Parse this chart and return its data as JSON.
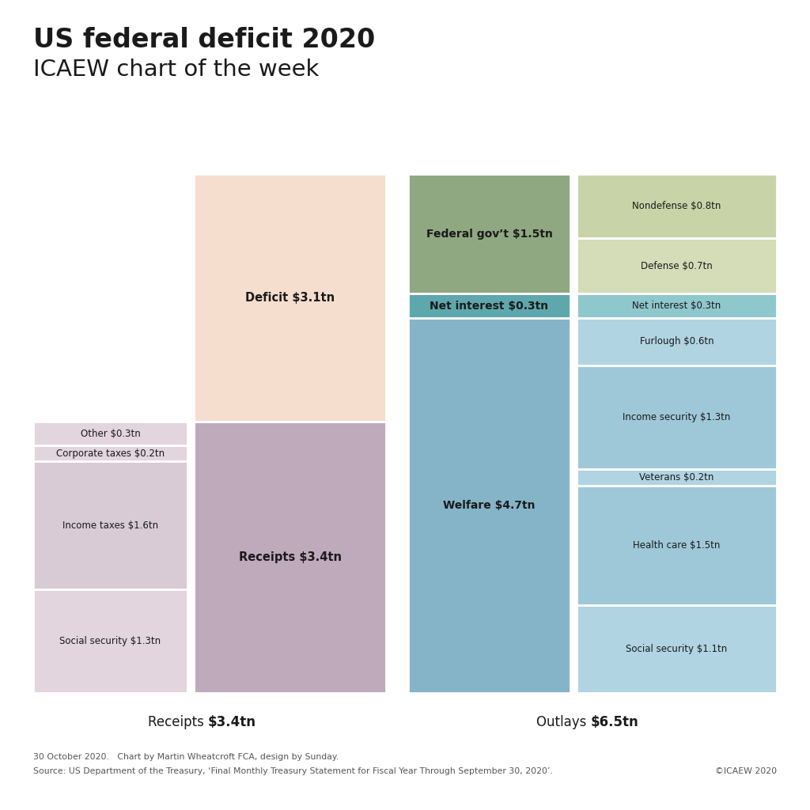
{
  "title_line1": "US federal deficit 2020",
  "title_line2": "ICAEW chart of the week",
  "footer_line1": "30 October 2020.   Chart by Martin Wheatcroft FCA, design by Sunday.",
  "footer_line2": "Source: US Department of the Treasury, ‘Final Monthly Treasury Statement for Fiscal Year Through September 30, 2020’.",
  "footer_right": "©ICAEW 2020",
  "total": 6.5,
  "receipts_total": 3.4,
  "deficit_total": 3.1,
  "outlays_total": 6.5,
  "receipts_breakdown": [
    {
      "label": "Social security $1.3tn",
      "value": 1.3,
      "color": "#e2d5de"
    },
    {
      "label": "Income taxes $1.6tn",
      "value": 1.6,
      "color": "#d8cbd5"
    },
    {
      "label": "Corporate taxes $0.2tn",
      "value": 0.2,
      "color": "#e2d5de"
    },
    {
      "label": "Other $0.3tn",
      "value": 0.3,
      "color": "#e2d5de"
    }
  ],
  "deficit_block": {
    "label": "Deficit $3.1tn",
    "value": 3.1,
    "color": "#f5dece"
  },
  "receipts_block": {
    "label": "Receipts $3.4tn",
    "value": 3.4,
    "color": "#bfaabb"
  },
  "outlays_summary": [
    {
      "label": "Federal gov’t $1.5tn",
      "value": 1.5,
      "color": "#8fa882"
    },
    {
      "label": "Net interest $0.3tn",
      "value": 0.3,
      "color": "#5ea8ad"
    },
    {
      "label": "Welfare $4.7tn",
      "value": 4.7,
      "color": "#85b4c8"
    }
  ],
  "outlays_breakdown": [
    {
      "label": "Nondefense $0.8tn",
      "value": 0.8,
      "color": "#c8d4a8"
    },
    {
      "label": "Defense $0.7tn",
      "value": 0.7,
      "color": "#d4dcb8"
    },
    {
      "label": "Net interest $0.3tn",
      "value": 0.3,
      "color": "#8ec8cc"
    },
    {
      "label": "Furlough $0.6tn",
      "value": 0.6,
      "color": "#b0d4e2"
    },
    {
      "label": "Income security $1.3tn",
      "value": 1.3,
      "color": "#9ec8d8"
    },
    {
      "label": "Veterans $0.2tn",
      "value": 0.2,
      "color": "#b0d4e2"
    },
    {
      "label": "Health care $1.5tn",
      "value": 1.5,
      "color": "#9ec8d8"
    },
    {
      "label": "Social security $1.1tn",
      "value": 1.1,
      "color": "#b0d4e2"
    }
  ],
  "background_color": "#ffffff",
  "text_color": "#1a1a1a"
}
